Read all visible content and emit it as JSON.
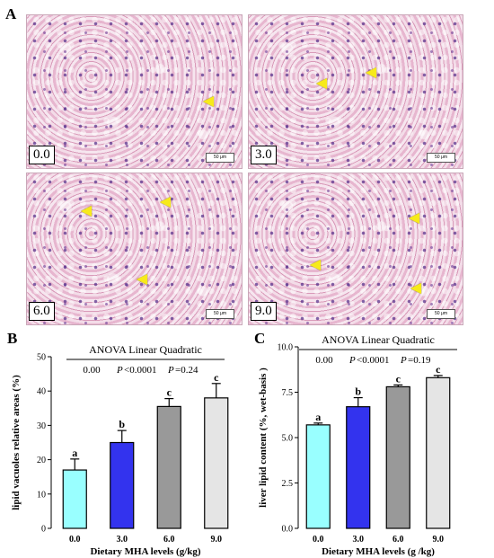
{
  "panel_a": {
    "letter": "A",
    "images": [
      {
        "label": "0.0",
        "scale": "50 μm"
      },
      {
        "label": "3.0",
        "scale": "50 μm"
      },
      {
        "label": "6.0",
        "scale": "50 μm"
      },
      {
        "label": "9.0",
        "scale": "50 μm"
      }
    ]
  },
  "chart_data": [
    {
      "panel": "B",
      "type": "bar",
      "categories": [
        "0.0",
        "3.0",
        "6.0",
        "9.0"
      ],
      "values": [
        17,
        25,
        35.5,
        38
      ],
      "errors": [
        3.2,
        3.5,
        2.3,
        4.2
      ],
      "letters": [
        "a",
        "b",
        "c",
        "c"
      ],
      "colors": [
        "#99ffff",
        "#3333ee",
        "#999999",
        "#e5e5e5"
      ],
      "ylabel": "lipid vacuoles relative areas (%)",
      "xlabel": "Dietary MHA levels (g/kg)",
      "ylim": [
        0,
        50
      ],
      "yticks": [
        0,
        10,
        20,
        30,
        40,
        50
      ],
      "stats_header": "ANOVA Linear Quadratic",
      "stat_anova": "0.00",
      "stat_linear_label": "P",
      "stat_linear_value": "<0.0001",
      "stat_quad_label": "P",
      "stat_quad_value": "=0.24"
    },
    {
      "panel": "C",
      "type": "bar",
      "categories": [
        "0.0",
        "3.0",
        "6.0",
        "9.0"
      ],
      "values": [
        5.7,
        6.7,
        7.8,
        8.3
      ],
      "errors": [
        0.1,
        0.5,
        0.1,
        0.12
      ],
      "letters": [
        "a",
        "b",
        "c",
        "c"
      ],
      "colors": [
        "#99ffff",
        "#3333ee",
        "#999999",
        "#e5e5e5"
      ],
      "ylabel": "liver lipid content (%, wet-basis )",
      "xlabel": "Dietary MHA levels (g /kg)",
      "ylim": [
        0,
        10
      ],
      "yticks": [
        "0.0",
        "2.5",
        "5.0",
        "7.5",
        "10.0"
      ],
      "stats_header": "ANOVA Linear Quadratic",
      "stat_anova": "0.00",
      "stat_linear_label": "P",
      "stat_linear_value": "<0.0001",
      "stat_quad_label": "P",
      "stat_quad_value": "=0.19"
    }
  ]
}
